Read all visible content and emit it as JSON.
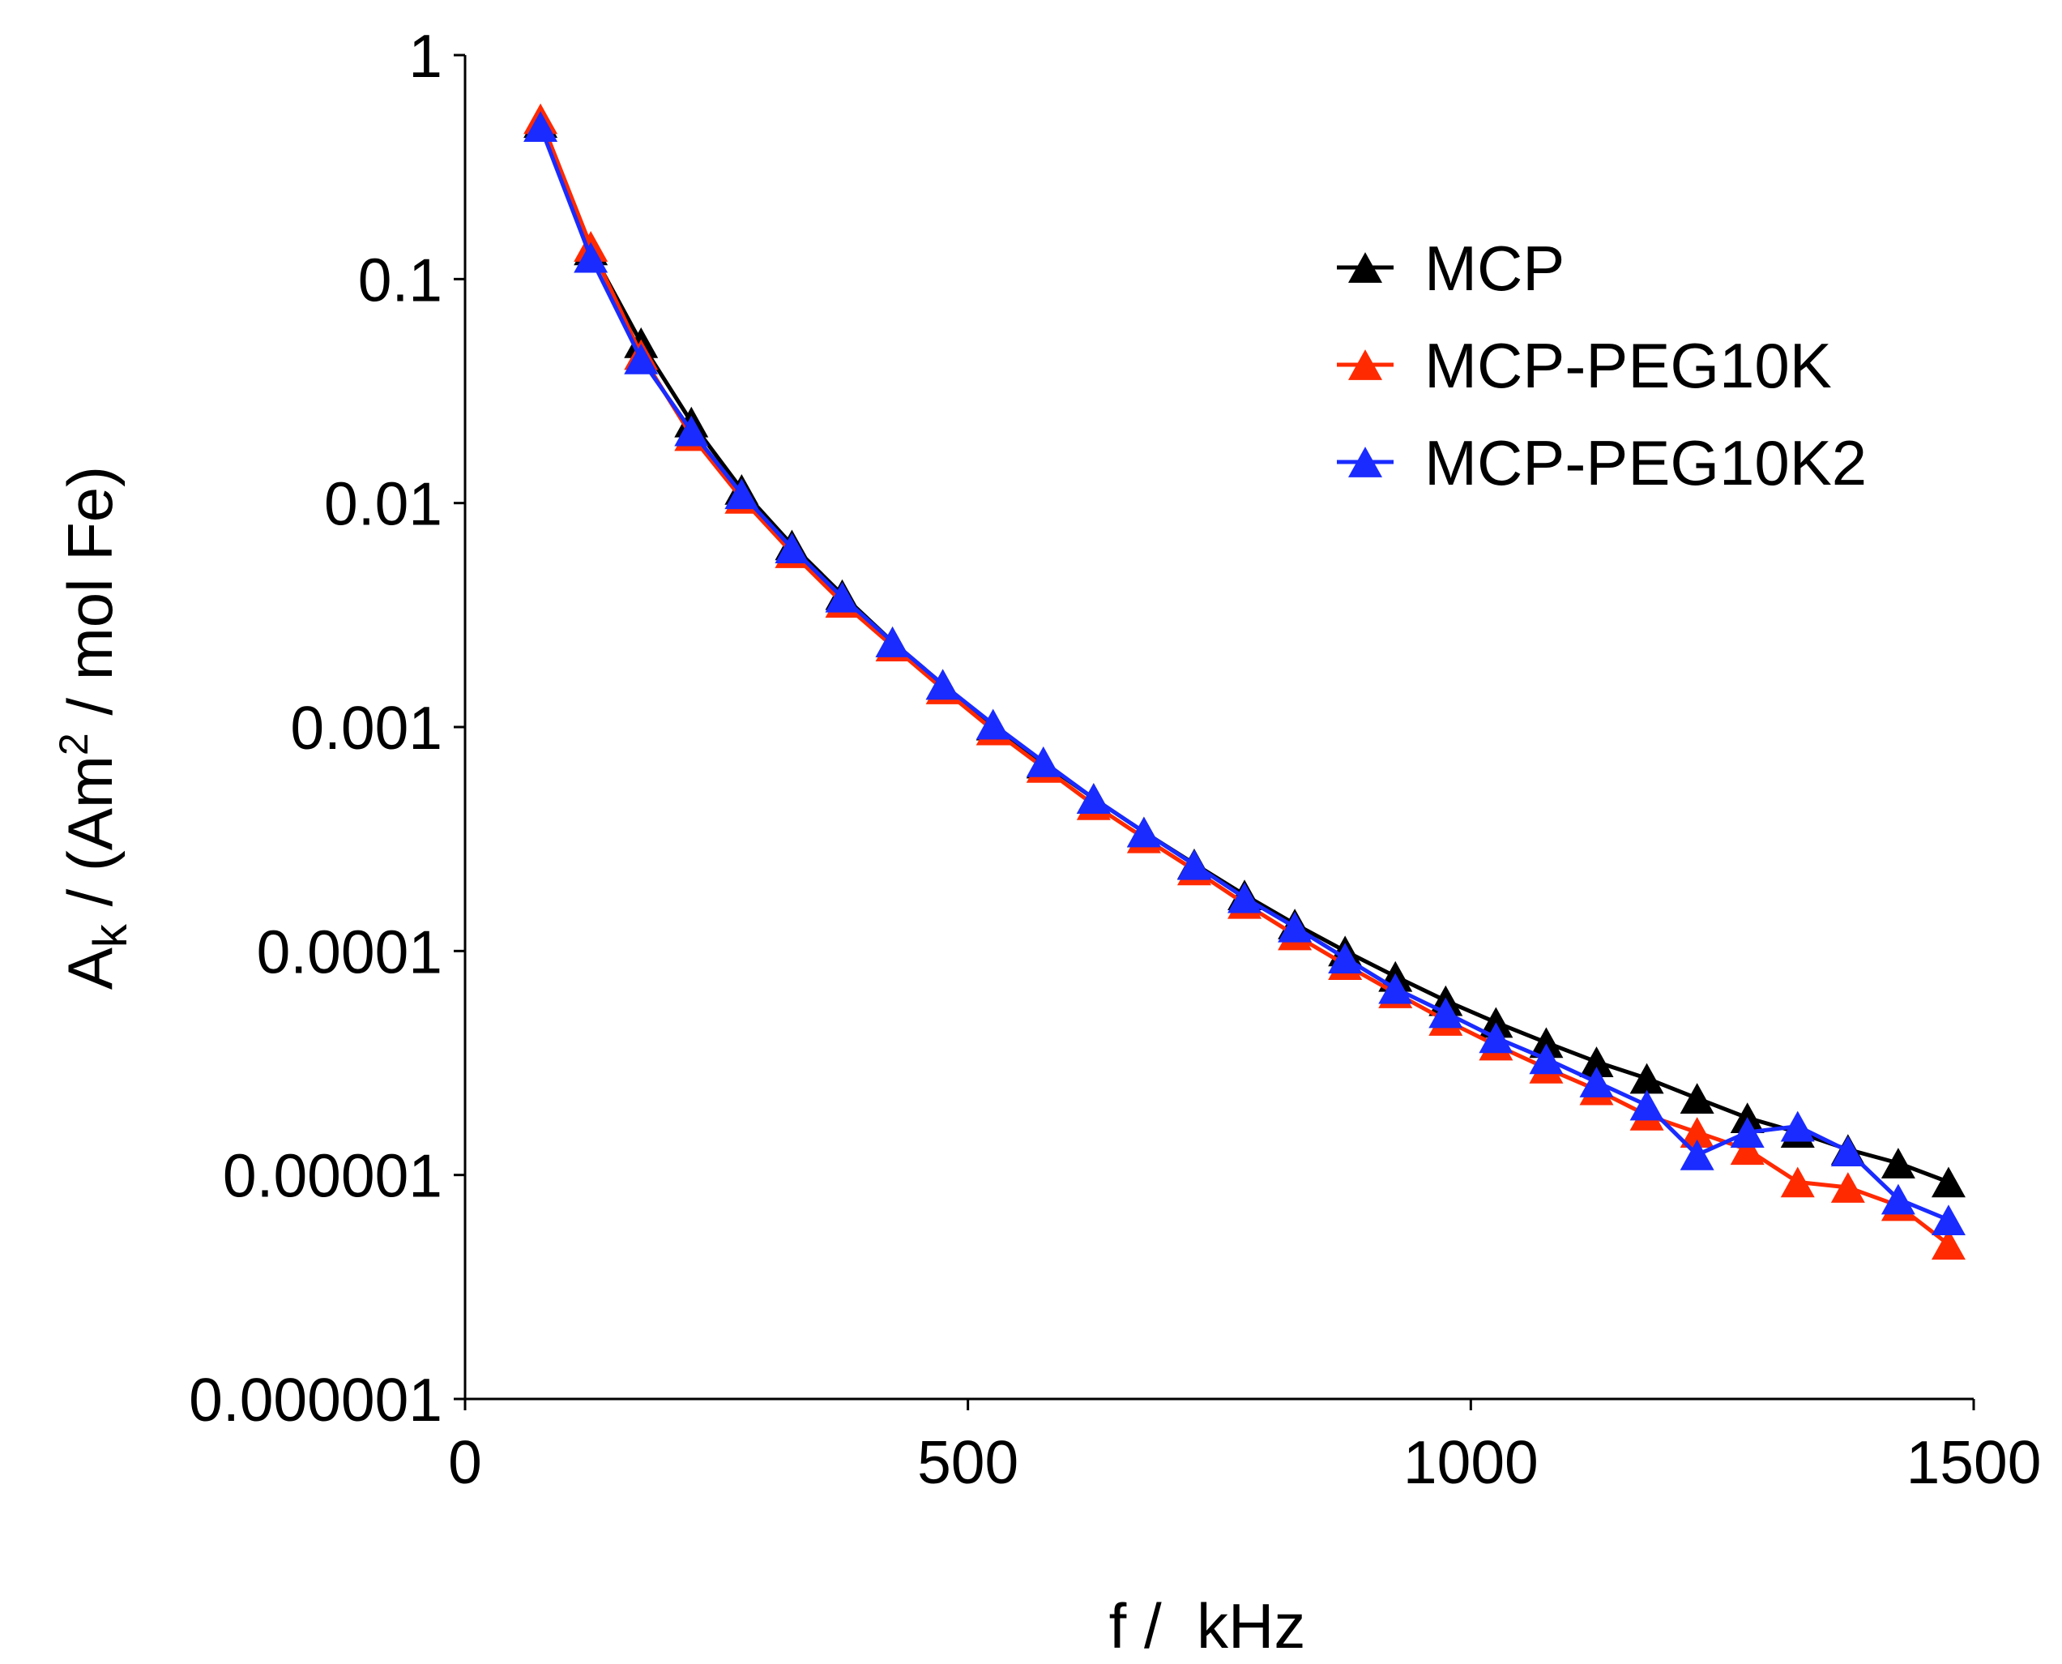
{
  "chart_data": {
    "type": "line",
    "title": "",
    "xlabel": "f /  kHz",
    "ylabel": {
      "prefix": "A",
      "subscript": "k",
      "middle": " / (Am",
      "superscript": "2",
      "suffix": " / mol Fe)"
    },
    "xlim": [
      0,
      1500
    ],
    "ylim": [
      1e-06,
      1
    ],
    "yscale": "log",
    "x_ticks": [
      {
        "value": 0,
        "label": "0"
      },
      {
        "value": 500,
        "label": "500"
      },
      {
        "value": 1000,
        "label": "1000"
      },
      {
        "value": 1500,
        "label": "1500"
      }
    ],
    "y_ticks": [
      {
        "value": 1,
        "label": "1"
      },
      {
        "value": 0.1,
        "label": "0.1"
      },
      {
        "value": 0.01,
        "label": "0.01"
      },
      {
        "value": 0.001,
        "label": "0.001"
      },
      {
        "value": 0.0001,
        "label": "0.0001"
      },
      {
        "value": 1e-05,
        "label": "0.00001"
      },
      {
        "value": 1e-06,
        "label": "0.000001"
      }
    ],
    "x": [
      75,
      125,
      175,
      225,
      275,
      325,
      375,
      425,
      475,
      525,
      575,
      625,
      675,
      725,
      775,
      825,
      875,
      925,
      975,
      1025,
      1075,
      1125,
      1175,
      1225,
      1275,
      1325,
      1375,
      1425,
      1475
    ],
    "legend_position": "top-right",
    "series": [
      {
        "name": "MCP",
        "color": "#000000",
        "values": [
          0.5,
          0.135,
          0.052,
          0.023,
          0.0115,
          0.0065,
          0.0039,
          0.0024,
          0.00155,
          0.00102,
          0.00069,
          0.00048,
          0.00034,
          0.000245,
          0.000178,
          0.000132,
          0.0001,
          7.7e-05,
          6e-05,
          4.8e-05,
          3.9e-05,
          3.2e-05,
          2.7e-05,
          2.2e-05,
          1.8e-05,
          1.55e-05,
          1.3e-05,
          1.13e-05,
          9.3e-06
        ]
      },
      {
        "name": "MCP-PEG10K",
        "color": "#ff2a00",
        "values": [
          0.52,
          0.14,
          0.046,
          0.02,
          0.0105,
          0.006,
          0.0036,
          0.0023,
          0.00148,
          0.00097,
          0.00066,
          0.00045,
          0.00032,
          0.00023,
          0.000163,
          0.000118,
          8.7e-05,
          6.5e-05,
          4.9e-05,
          3.8e-05,
          3e-05,
          2.4e-05,
          1.85e-05,
          1.55e-05,
          1.3e-05,
          9.3e-06,
          8.8e-06,
          7.3e-06,
          4.9e-06
        ]
      },
      {
        "name": "MCP-PEG10K2",
        "color": "#1a2bff",
        "values": [
          0.48,
          0.125,
          0.044,
          0.021,
          0.011,
          0.0063,
          0.0038,
          0.0024,
          0.00155,
          0.00103,
          0.0007,
          0.00048,
          0.00034,
          0.000243,
          0.000173,
          0.000128,
          9.3e-05,
          6.8e-05,
          5.3e-05,
          4.1e-05,
          3.3e-05,
          2.6e-05,
          2.05e-05,
          1.23e-05,
          1.55e-05,
          1.65e-05,
          1.28e-05,
          7.8e-06,
          6.3e-06
        ]
      }
    ]
  }
}
